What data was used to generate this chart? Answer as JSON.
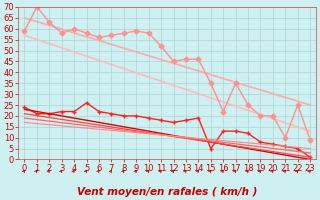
{
  "xlabel": "Vent moyen/en rafales ( km/h )",
  "background_color": "#cef0f0",
  "grid_color": "#aad4d4",
  "xlim": [
    -0.5,
    23.5
  ],
  "ylim": [
    0,
    70
  ],
  "yticks": [
    0,
    5,
    10,
    15,
    20,
    25,
    30,
    35,
    40,
    45,
    50,
    55,
    60,
    65,
    70
  ],
  "xticks": [
    0,
    1,
    2,
    3,
    4,
    5,
    6,
    7,
    8,
    9,
    10,
    11,
    12,
    13,
    14,
    15,
    16,
    17,
    18,
    19,
    20,
    21,
    22,
    23
  ],
  "series": [
    {
      "name": "rafales_top_trend",
      "color": "#ffaaaa",
      "x": [
        0,
        23
      ],
      "y": [
        65,
        25
      ],
      "marker": null,
      "lw": 1.2,
      "ms": 0
    },
    {
      "name": "rafales_mid_trend",
      "color": "#ffbbbb",
      "x": [
        0,
        23
      ],
      "y": [
        57,
        13
      ],
      "marker": null,
      "lw": 1.2,
      "ms": 0
    },
    {
      "name": "max_rafales",
      "color": "#ff9090",
      "x": [
        0,
        1,
        2,
        3,
        4,
        5,
        6,
        7,
        8,
        9,
        10,
        11,
        12,
        13,
        14,
        15,
        16,
        17,
        18,
        19,
        20,
        21,
        22,
        23
      ],
      "y": [
        59,
        70,
        63,
        58,
        60,
        58,
        56,
        57,
        58,
        59,
        58,
        52,
        45,
        46,
        46,
        35,
        22,
        35,
        25,
        20,
        20,
        10,
        25,
        9
      ],
      "marker": "D",
      "lw": 1.0,
      "ms": 2.5
    },
    {
      "name": "vent_moyen_main",
      "color": "#ff2020",
      "x": [
        0,
        1,
        2,
        3,
        4,
        5,
        6,
        7,
        8,
        9,
        10,
        11,
        12,
        13,
        14,
        15,
        16,
        17,
        18,
        19,
        20,
        21,
        22,
        23
      ],
      "y": [
        24,
        21,
        21,
        22,
        22,
        26,
        22,
        21,
        20,
        20,
        19,
        18,
        17,
        18,
        19,
        5,
        13,
        13,
        12,
        8,
        7,
        6,
        5,
        1
      ],
      "marker": "+",
      "lw": 1.0,
      "ms": 3.5
    },
    {
      "name": "trend_vent1",
      "color": "#dd0000",
      "x": [
        0,
        23
      ],
      "y": [
        23,
        0
      ],
      "marker": null,
      "lw": 1.0,
      "ms": 0
    },
    {
      "name": "trend_vent2",
      "color": "#ff4444",
      "x": [
        0,
        23
      ],
      "y": [
        21,
        1
      ],
      "marker": null,
      "lw": 0.9,
      "ms": 0
    },
    {
      "name": "trend_vent3",
      "color": "#ff6666",
      "x": [
        0,
        23
      ],
      "y": [
        19,
        3
      ],
      "marker": null,
      "lw": 0.9,
      "ms": 0
    },
    {
      "name": "trend_vent4",
      "color": "#ff8888",
      "x": [
        0,
        23
      ],
      "y": [
        17,
        5
      ],
      "marker": null,
      "lw": 0.8,
      "ms": 0
    }
  ],
  "xlabel_color": "#cc0000",
  "xlabel_fontsize": 7.5,
  "tick_fontsize": 6,
  "tick_color": "#cc0000",
  "spine_color": "#cc4444"
}
